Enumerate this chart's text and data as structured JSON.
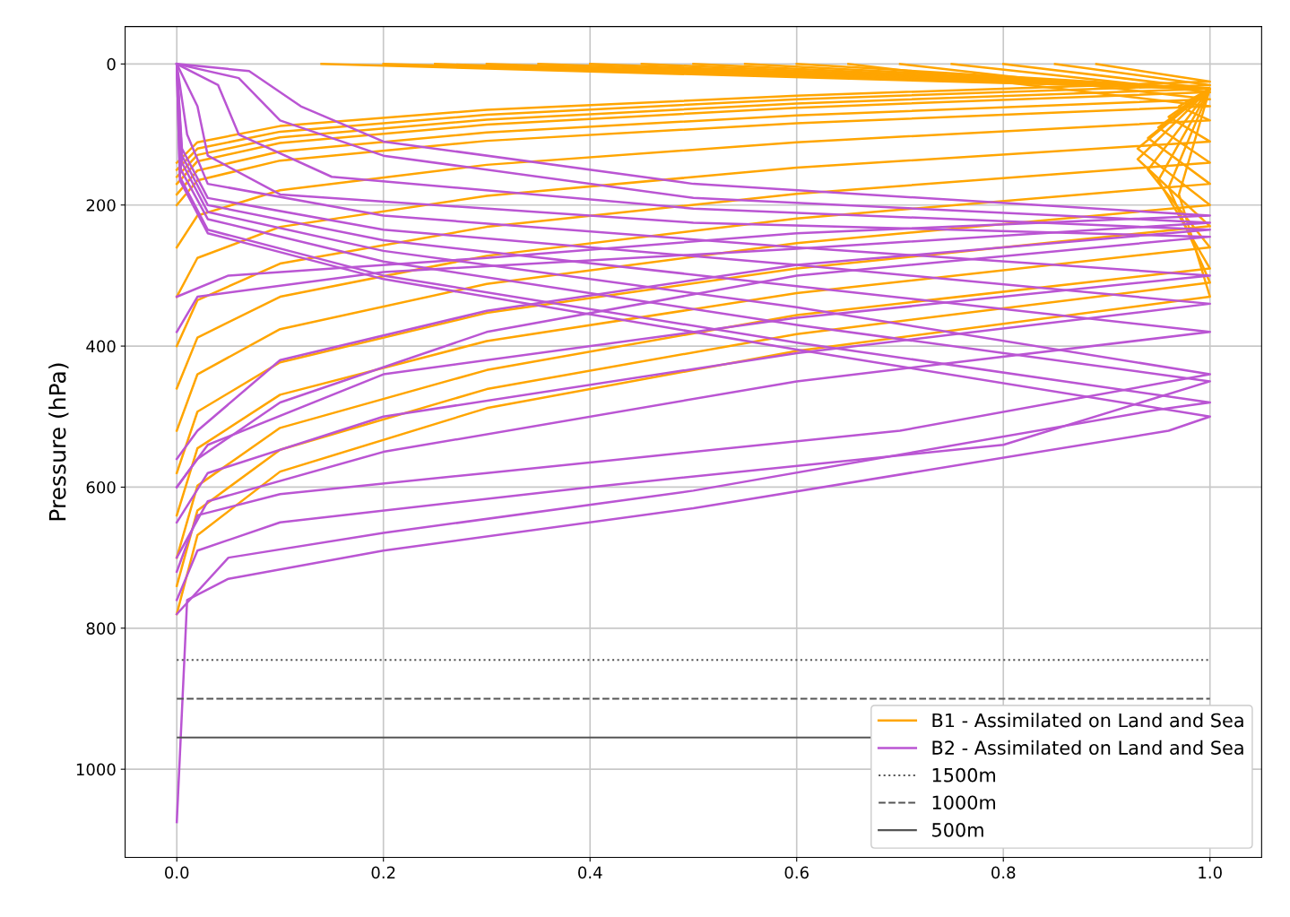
{
  "chart_data": {
    "type": "line",
    "ylabel": "Pressure (hPa)",
    "xlim": [
      -0.05,
      1.05
    ],
    "ylim": [
      1125,
      -53
    ],
    "xticks": [
      {
        "value": 0,
        "label": "0.0"
      },
      {
        "value": 0.2,
        "label": "0.2"
      },
      {
        "value": 0.4,
        "label": "0.4"
      },
      {
        "value": 0.6,
        "label": "0.6"
      },
      {
        "value": 0.8,
        "label": "0.8"
      },
      {
        "value": 1,
        "label": "1.0"
      }
    ],
    "yticks": [
      0,
      200,
      400,
      600,
      800,
      1000
    ],
    "grid": true,
    "legend": "bottom right",
    "line_style": "solid",
    "marker": "none",
    "series": [
      {
        "name": "B1 - Assimilated on Land and Sea",
        "color": "#ffa500",
        "x": [
          0,
          0.02,
          0.1,
          0.3,
          0.6,
          1,
          0.89
        ],
        "values": [
          140,
          111,
          88,
          65,
          45,
          25,
          0
        ]
      },
      {
        "color": "#ffa500",
        "x": [
          0,
          0.02,
          0.1,
          0.3,
          0.6,
          1,
          0.85
        ],
        "values": [
          150,
          120,
          96,
          72,
          50,
          30,
          0
        ]
      },
      {
        "color": "#ffa500",
        "x": [
          0,
          0.02,
          0.1,
          0.3,
          0.6,
          1,
          0.8
        ],
        "values": [
          160,
          129,
          104,
          79,
          56,
          35,
          0
        ]
      },
      {
        "color": "#ffa500",
        "x": [
          0,
          0.02,
          0.1,
          0.3,
          0.6,
          1,
          0.75
        ],
        "values": [
          170,
          138,
          112,
          86,
          62,
          40,
          0
        ]
      },
      {
        "color": "#ffa500",
        "x": [
          0,
          0.02,
          0.1,
          0.3,
          0.6,
          1,
          0.7
        ],
        "values": [
          185,
          151,
          124,
          97,
          73,
          50,
          0
        ]
      },
      {
        "color": "#ffa500",
        "x": [
          0,
          0.02,
          0.1,
          0.3,
          0.6,
          1,
          0.65
        ],
        "values": [
          200,
          165,
          137,
          109,
          84,
          60,
          0
        ]
      },
      {
        "color": "#ffa500",
        "x": [
          0,
          0.02,
          0.1,
          0.3,
          0.6,
          1,
          0.97,
          1,
          0.6
        ],
        "values": [
          260,
          215,
          179,
          143,
          111,
          80,
          60,
          35,
          0
        ]
      },
      {
        "color": "#ffa500",
        "x": [
          0,
          0.02,
          0.1,
          0.3,
          0.6,
          1,
          0.96,
          1,
          0.55
        ],
        "values": [
          330,
          275,
          231,
          187,
          147,
          110,
          75,
          35,
          0
        ]
      },
      {
        "color": "#ffa500",
        "x": [
          0,
          0.02,
          0.1,
          0.3,
          0.6,
          1,
          0.95,
          1,
          0.5
        ],
        "values": [
          400,
          335,
          283,
          231,
          184,
          140,
          90,
          35,
          0
        ]
      },
      {
        "color": "#ffa500",
        "x": [
          0,
          0.02,
          0.1,
          0.3,
          0.6,
          1,
          0.94,
          1,
          0.45
        ],
        "values": [
          460,
          388,
          330,
          272,
          219,
          170,
          105,
          35,
          0
        ]
      },
      {
        "color": "#ffa500",
        "x": [
          0,
          0.02,
          0.1,
          0.3,
          0.6,
          1,
          0.93,
          1,
          0.4
        ],
        "values": [
          520,
          440,
          376,
          312,
          254,
          200,
          120,
          35,
          0
        ]
      },
      {
        "color": "#ffa500",
        "x": [
          0,
          0.02,
          0.1,
          0.3,
          0.6,
          1,
          0.93,
          1,
          0.35
        ],
        "values": [
          580,
          493,
          423,
          353,
          290,
          230,
          135,
          35,
          0
        ]
      },
      {
        "color": "#ffa500",
        "x": [
          0,
          0.02,
          0.1,
          0.3,
          0.6,
          1,
          0.94,
          1,
          0.3
        ],
        "values": [
          640,
          545,
          469,
          393,
          325,
          260,
          150,
          35,
          0
        ]
      },
      {
        "color": "#ffa500",
        "x": [
          0,
          0.02,
          0.1,
          0.3,
          0.6,
          1,
          0.95,
          1,
          0.25
        ],
        "values": [
          700,
          598,
          516,
          434,
          356,
          290,
          165,
          35,
          0
        ]
      },
      {
        "color": "#ffa500",
        "x": [
          0,
          0.02,
          0.1,
          0.3,
          0.6,
          1,
          0.96,
          1,
          0.2
        ],
        "values": [
          740,
          633,
          547,
          461,
          383,
          310,
          175,
          35,
          0
        ]
      },
      {
        "color": "#ffa500",
        "x": [
          0,
          0.02,
          0.1,
          0.3,
          0.6,
          1,
          0.97,
          1,
          0.14
        ],
        "values": [
          780,
          668,
          578,
          488,
          407,
          330,
          185,
          35,
          0
        ]
      },
      {
        "name": "B2 - Assimilated on Land and Sea",
        "color": "#ba55d3",
        "x": [
          0,
          0.07,
          0.12,
          0.2,
          0.5,
          1,
          0.6,
          0.3,
          0.05,
          0
        ],
        "values": [
          0,
          10,
          60,
          110,
          170,
          215,
          240,
          275,
          300,
          330
        ]
      },
      {
        "color": "#ba55d3",
        "x": [
          0,
          0.06,
          0.1,
          0.2,
          0.5,
          1,
          0.6,
          0.2,
          0.02,
          0
        ],
        "values": [
          0,
          20,
          80,
          130,
          190,
          225,
          262,
          295,
          330,
          380
        ]
      },
      {
        "color": "#ba55d3",
        "x": [
          0,
          0.04,
          0.06,
          0.15,
          0.5,
          1,
          0.6,
          0.3,
          0.1,
          0.02,
          0
        ],
        "values": [
          0,
          30,
          100,
          160,
          205,
          235,
          285,
          350,
          420,
          520,
          560
        ]
      },
      {
        "color": "#ba55d3",
        "x": [
          0,
          0.02,
          0.03,
          0.1,
          0.5,
          1,
          0.6,
          0.3,
          0.1,
          0.02,
          0
        ],
        "values": [
          0,
          60,
          130,
          185,
          225,
          245,
          300,
          380,
          480,
          560,
          600
        ]
      },
      {
        "color": "#ba55d3",
        "x": [
          0,
          0.01,
          0.03,
          0.2,
          0.6,
          1,
          0.6,
          0.2,
          0.03,
          0
        ],
        "values": [
          0,
          100,
          170,
          215,
          260,
          300,
          360,
          440,
          540,
          600
        ]
      },
      {
        "color": "#ba55d3",
        "x": [
          0,
          0.005,
          0.03,
          0.2,
          0.6,
          1,
          0.6,
          0.2,
          0.03,
          0
        ],
        "values": [
          0,
          120,
          190,
          235,
          285,
          340,
          410,
          500,
          580,
          650
        ]
      },
      {
        "color": "#ba55d3",
        "x": [
          0,
          0.005,
          0.03,
          0.2,
          0.6,
          1,
          0.6,
          0.2,
          0.03,
          0
        ],
        "values": [
          0,
          130,
          200,
          250,
          315,
          380,
          450,
          550,
          620,
          700
        ]
      },
      {
        "color": "#ba55d3",
        "x": [
          0,
          0.005,
          0.03,
          0.2,
          0.6,
          1,
          0.7,
          0.3,
          0.1,
          0.02,
          0
        ],
        "values": [
          0,
          140,
          210,
          265,
          345,
          440,
          520,
          580,
          610,
          640,
          720
        ]
      },
      {
        "color": "#ba55d3",
        "x": [
          0,
          0.004,
          0.03,
          0.2,
          0.6,
          1,
          0.8,
          0.4,
          0.1,
          0.02,
          0
        ],
        "values": [
          0,
          150,
          220,
          280,
          370,
          450,
          540,
          600,
          650,
          690,
          760
        ]
      },
      {
        "color": "#ba55d3",
        "x": [
          0,
          0.003,
          0.03,
          0.2,
          0.6,
          1,
          0.95,
          0.5,
          0.2,
          0.05,
          0
        ],
        "values": [
          0,
          160,
          235,
          300,
          395,
          480,
          490,
          605,
          665,
          700,
          780
        ]
      },
      {
        "color": "#ba55d3",
        "x": [
          0,
          0.003,
          0.03,
          0.2,
          0.6,
          1,
          0.96,
          0.5,
          0.2,
          0.05,
          0.01,
          0
        ],
        "values": [
          0,
          165,
          240,
          305,
          405,
          500,
          520,
          630,
          690,
          730,
          760,
          1075
        ]
      }
    ],
    "ref_lines": [
      {
        "axis": "y",
        "value": 845,
        "label": "1500m",
        "color": "#555555",
        "line_style": "dotted"
      },
      {
        "axis": "y",
        "value": 900,
        "label": "1000m",
        "color": "#555555",
        "line_style": "dashed"
      },
      {
        "axis": "y",
        "value": 955,
        "label": "500m",
        "color": "#555555",
        "line_style": "solid"
      }
    ]
  }
}
